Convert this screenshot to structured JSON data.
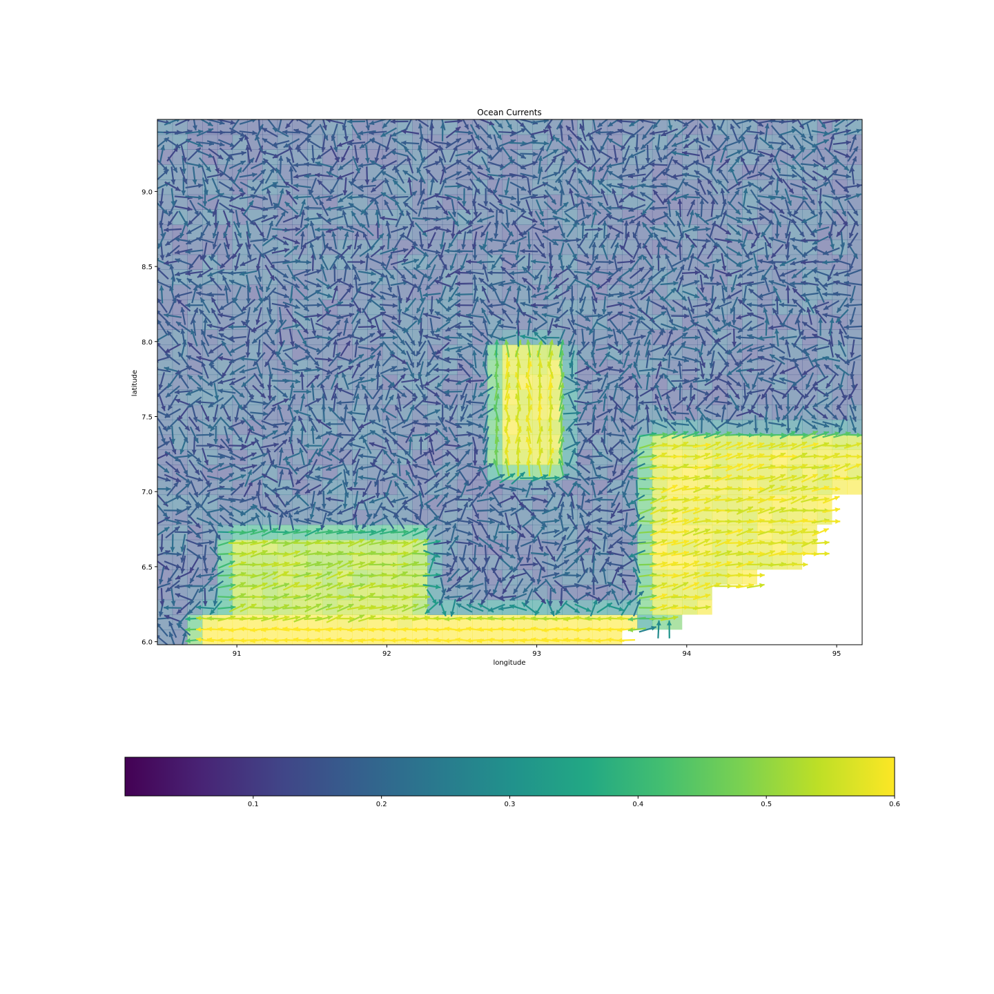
{
  "chart_data": {
    "type": "quiver",
    "title": "Ocean Currents",
    "xlabel": "longitude",
    "ylabel": "latitude",
    "xlim": [
      90.47,
      95.17
    ],
    "ylim": [
      5.98,
      9.48
    ],
    "x_ticks": [
      91,
      92,
      93,
      94,
      95
    ],
    "x_tick_labels": [
      "91",
      "92",
      "93",
      "94",
      "95"
    ],
    "y_ticks": [
      6.0,
      6.5,
      7.0,
      7.5,
      8.0,
      8.5,
      9.0
    ],
    "y_tick_labels": [
      "6.0",
      "6.5",
      "7.0",
      "7.5",
      "8.0",
      "8.5",
      "9.0"
    ],
    "colormap": "viridis",
    "colorbar": {
      "range": [
        0.0,
        0.6
      ],
      "ticks": [
        0.1,
        0.2,
        0.3,
        0.4,
        0.5,
        0.6
      ],
      "tick_labels": [
        "0.1",
        "0.2",
        "0.3",
        "0.4",
        "0.5",
        "0.6"
      ],
      "orientation": "horizontal",
      "placement": "bottom"
    },
    "background": "current speed (translucent viridis grid, ~0.1° cells)",
    "high_speed_features": [
      {
        "description": "strong westward current along southern edge",
        "lon": [
          90.8,
          93.6
        ],
        "lat": [
          5.98,
          6.1
        ],
        "speed": 0.6
      },
      {
        "description": "north-south jet",
        "lon": [
          92.8,
          93.1
        ],
        "lat": [
          7.2,
          7.9
        ],
        "speed": 0.55
      },
      {
        "description": "eastward band",
        "lon": [
          91.0,
          92.2
        ],
        "lat": [
          6.2,
          6.65
        ],
        "speed": 0.5
      },
      {
        "description": "coastal current near land mask",
        "lon": [
          93.8,
          95.17
        ],
        "lat": [
          6.2,
          7.3
        ],
        "speed": 0.55
      }
    ],
    "land_mask": "lower-right corner (southeast)",
    "grid": false,
    "legend": "none"
  }
}
